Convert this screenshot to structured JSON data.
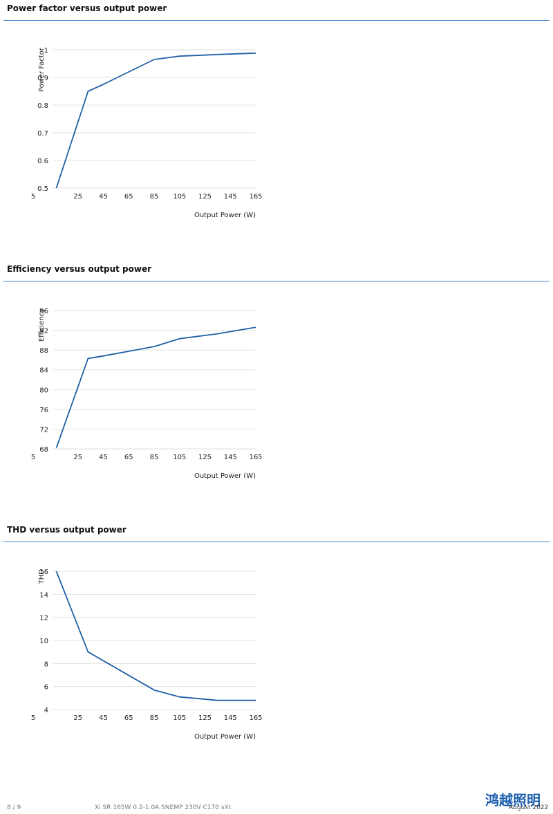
{
  "sections": [
    {
      "title": "Power factor versus output power",
      "chart_data": {
        "type": "line",
        "title": "Power factor versus output power",
        "xlabel": "Output Power (W)",
        "ylabel": "Power Factor",
        "xlim": [
          5,
          165
        ],
        "ylim": [
          0.5,
          1
        ],
        "x_ticks": [
          "5",
          "25",
          "45",
          "65",
          "85",
          "105",
          "125",
          "145",
          "165"
        ],
        "y_ticks": [
          "0.5",
          "0.6",
          "0.7",
          "0.8",
          "0.9",
          "1"
        ],
        "grid": true,
        "series": [
          {
            "color": "#1f5fa6",
            "x": [
              8,
              33,
              45,
              85,
              105,
              135,
              165
            ],
            "y": [
              0.5,
              0.85,
              0.875,
              0.965,
              0.977,
              0.983,
              0.988
            ]
          }
        ]
      }
    },
    {
      "title": "Efficiency versus output power",
      "chart_data": {
        "type": "line",
        "title": "Efficiency versus output power",
        "xlabel": "Output Power (W)",
        "ylabel": "Efficiency",
        "xlim": [
          5,
          165
        ],
        "ylim": [
          68,
          96
        ],
        "x_ticks": [
          "5",
          "25",
          "45",
          "65",
          "85",
          "105",
          "125",
          "145",
          "165"
        ],
        "y_ticks": [
          "68",
          "72",
          "76",
          "80",
          "84",
          "88",
          "92",
          "96"
        ],
        "grid": true,
        "series": [
          {
            "color": "#1f5fa6",
            "x": [
              8,
              33,
              45,
              85,
              105,
              135,
              165
            ],
            "y": [
              68.2,
              86.3,
              86.8,
              88.7,
              90.3,
              91.3,
              92.6
            ]
          }
        ]
      }
    },
    {
      "title": "THD versus output power",
      "chart_data": {
        "type": "line",
        "title": "THD versus output power",
        "xlabel": "Output Power (W)",
        "ylabel": "THD",
        "xlim": [
          5,
          165
        ],
        "ylim": [
          4,
          16
        ],
        "x_ticks": [
          "5",
          "25",
          "45",
          "65",
          "85",
          "105",
          "125",
          "145",
          "165"
        ],
        "y_ticks": [
          "4",
          "6",
          "8",
          "10",
          "12",
          "14",
          "16"
        ],
        "grid": true,
        "series": [
          {
            "color": "#1f5fa6",
            "x": [
              8,
              33,
              85,
              105,
              135,
              165
            ],
            "y": [
              16,
              9,
              5.7,
              5.1,
              4.8,
              4.8
            ]
          }
        ]
      }
    }
  ],
  "footer": {
    "page": "8 / 9",
    "product": "Xi SR 165W 0.2-1.0A SNEMP 230V C170 sXt",
    "date": "August 2022"
  },
  "watermark": {
    "text": "鸿越照明",
    "color": "#1d5fae"
  }
}
